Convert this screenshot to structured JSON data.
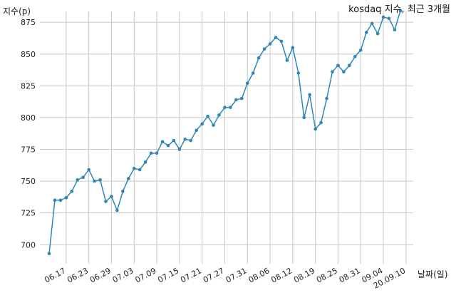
{
  "chart_data": {
    "type": "line",
    "title": "kosdaq 지수, 최근 3개월",
    "ylabel": "지수(p)",
    "xlabel": "날짜(일)",
    "ylim": [
      685,
      888
    ],
    "yticks": [
      700,
      725,
      750,
      775,
      800,
      825,
      850,
      875
    ],
    "grid": true,
    "colors": {
      "line": "#2e86b8",
      "grid": "#c8c8c8"
    },
    "x_tick_labels": [
      "06.17",
      "06.23",
      "06.29",
      "07.03",
      "07.09",
      "07.15",
      "07.21",
      "07.27",
      "07.31",
      "08.06",
      "08.12",
      "08.19",
      "08.25",
      "08.31",
      "09.04",
      "20.09.10"
    ],
    "x_tick_index": [
      3,
      7,
      11,
      15,
      19,
      23,
      27,
      31,
      35,
      39,
      43,
      47,
      51,
      55,
      59,
      63
    ],
    "series": [
      {
        "values": [
          693,
          735,
          735,
          737,
          742,
          751,
          753,
          759,
          750,
          751,
          734,
          738,
          727,
          742,
          752,
          760,
          759,
          765,
          772,
          772,
          781,
          778,
          782,
          775,
          783,
          782,
          790,
          795,
          801,
          794,
          802,
          808,
          808,
          814,
          815,
          827,
          835,
          847,
          854,
          858,
          863,
          860,
          845,
          855,
          835,
          800,
          818,
          791,
          796,
          815,
          836,
          841,
          836,
          841,
          848,
          853,
          867,
          874,
          866,
          879,
          878,
          869,
          884
        ]
      }
    ]
  }
}
